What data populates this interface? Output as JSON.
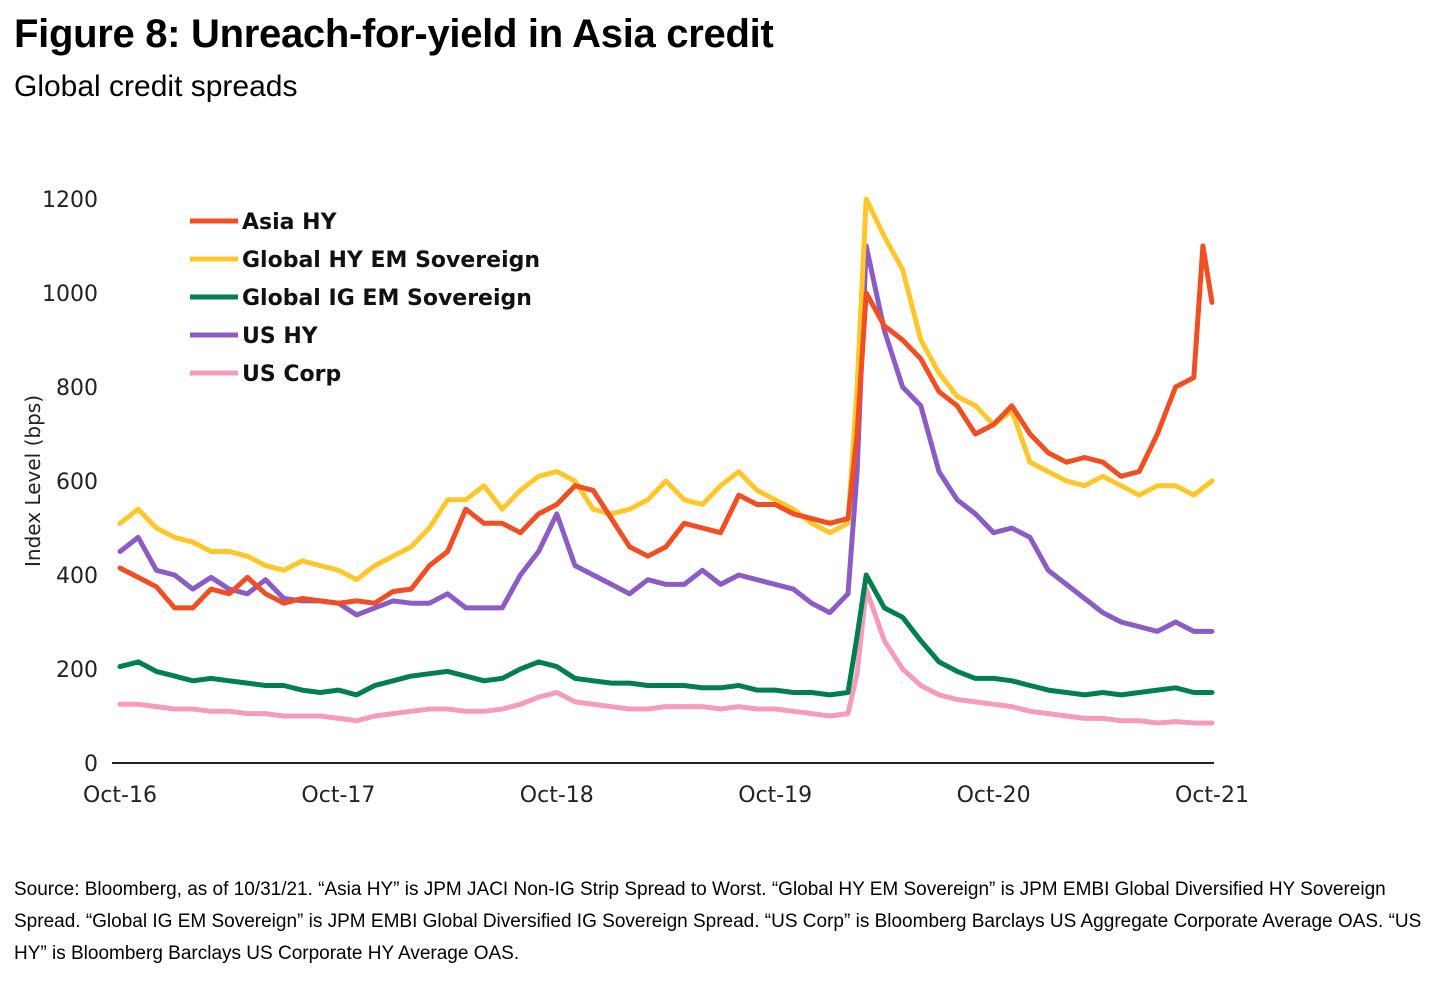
{
  "title": "Figure 8: Unreach-for-yield in Asia credit",
  "subtitle": "Global credit spreads",
  "source": [
    "Source: Bloomberg, as of 10/31/21. “Asia HY” is JPM JACI Non-IG Strip Spread to Worst. “Global HY EM Sovereign” is JPM EMBI Global Diversified HY Sovereign Spread. “Global IG EM Sovereign” is JPM EMBI Global Diversified IG Sovereign Spread. “US Corp” is Bloomberg Barclays US Aggregate Corporate Average OAS. “US HY” is Bloomberg Barclays US Corporate HY Average OAS."
  ],
  "chart_data": {
    "type": "line",
    "title": "Global credit spreads",
    "xlabel": "",
    "ylabel": "Index Level (bps)",
    "ylim": [
      0,
      1200
    ],
    "yticks": [
      0,
      200,
      400,
      600,
      800,
      1000,
      1200
    ],
    "xlim": [
      0,
      60
    ],
    "xticks": [
      {
        "x": 0,
        "label": "Oct-16"
      },
      {
        "x": 12,
        "label": "Oct-17"
      },
      {
        "x": 24,
        "label": "Oct-18"
      },
      {
        "x": 36,
        "label": "Oct-19"
      },
      {
        "x": 48,
        "label": "Oct-20"
      },
      {
        "x": 60,
        "label": "Oct-21"
      }
    ],
    "legend_position": "top-left",
    "series": [
      {
        "name": "Asia HY",
        "color": "#f04e23",
        "points": [
          [
            0,
            415
          ],
          [
            1,
            395
          ],
          [
            2,
            375
          ],
          [
            3,
            330
          ],
          [
            4,
            330
          ],
          [
            5,
            370
          ],
          [
            6,
            360
          ],
          [
            7,
            395
          ],
          [
            8,
            360
          ],
          [
            9,
            340
          ],
          [
            10,
            350
          ],
          [
            11,
            345
          ],
          [
            12,
            340
          ],
          [
            13,
            345
          ],
          [
            14,
            340
          ],
          [
            15,
            365
          ],
          [
            16,
            370
          ],
          [
            17,
            420
          ],
          [
            18,
            450
          ],
          [
            19,
            540
          ],
          [
            20,
            510
          ],
          [
            21,
            510
          ],
          [
            22,
            490
          ],
          [
            23,
            530
          ],
          [
            24,
            550
          ],
          [
            25,
            590
          ],
          [
            26,
            580
          ],
          [
            27,
            520
          ],
          [
            28,
            460
          ],
          [
            29,
            440
          ],
          [
            30,
            460
          ],
          [
            31,
            510
          ],
          [
            32,
            500
          ],
          [
            33,
            490
          ],
          [
            34,
            570
          ],
          [
            35,
            550
          ],
          [
            36,
            550
          ],
          [
            37,
            530
          ],
          [
            38,
            520
          ],
          [
            39,
            510
          ],
          [
            40,
            520
          ],
          [
            40.5,
            700
          ],
          [
            41,
            1000
          ],
          [
            42,
            930
          ],
          [
            43,
            900
          ],
          [
            44,
            860
          ],
          [
            45,
            790
          ],
          [
            46,
            760
          ],
          [
            47,
            700
          ],
          [
            48,
            720
          ],
          [
            49,
            760
          ],
          [
            50,
            700
          ],
          [
            51,
            660
          ],
          [
            52,
            640
          ],
          [
            53,
            650
          ],
          [
            54,
            640
          ],
          [
            55,
            610
          ],
          [
            56,
            620
          ],
          [
            57,
            700
          ],
          [
            58,
            800
          ],
          [
            59,
            820
          ],
          [
            59.5,
            1100
          ],
          [
            60,
            980
          ]
        ]
      },
      {
        "name": "Global HY EM Sovereign",
        "color": "#ffc72c",
        "points": [
          [
            0,
            510
          ],
          [
            1,
            540
          ],
          [
            2,
            500
          ],
          [
            3,
            480
          ],
          [
            4,
            470
          ],
          [
            5,
            450
          ],
          [
            6,
            450
          ],
          [
            7,
            440
          ],
          [
            8,
            420
          ],
          [
            9,
            410
          ],
          [
            10,
            430
          ],
          [
            11,
            420
          ],
          [
            12,
            410
          ],
          [
            13,
            390
          ],
          [
            14,
            420
          ],
          [
            15,
            440
          ],
          [
            16,
            460
          ],
          [
            17,
            500
          ],
          [
            18,
            560
          ],
          [
            19,
            560
          ],
          [
            20,
            590
          ],
          [
            21,
            540
          ],
          [
            22,
            580
          ],
          [
            23,
            610
          ],
          [
            24,
            620
          ],
          [
            25,
            600
          ],
          [
            26,
            540
          ],
          [
            27,
            530
          ],
          [
            28,
            540
          ],
          [
            29,
            560
          ],
          [
            30,
            600
          ],
          [
            31,
            560
          ],
          [
            32,
            550
          ],
          [
            33,
            590
          ],
          [
            34,
            620
          ],
          [
            35,
            580
          ],
          [
            36,
            560
          ],
          [
            37,
            540
          ],
          [
            38,
            510
          ],
          [
            39,
            490
          ],
          [
            40,
            510
          ],
          [
            40.5,
            800
          ],
          [
            41,
            1200
          ],
          [
            42,
            1120
          ],
          [
            43,
            1050
          ],
          [
            44,
            900
          ],
          [
            45,
            830
          ],
          [
            46,
            780
          ],
          [
            47,
            760
          ],
          [
            48,
            720
          ],
          [
            49,
            750
          ],
          [
            50,
            640
          ],
          [
            51,
            620
          ],
          [
            52,
            600
          ],
          [
            53,
            590
          ],
          [
            54,
            610
          ],
          [
            55,
            590
          ],
          [
            56,
            570
          ],
          [
            57,
            590
          ],
          [
            58,
            590
          ],
          [
            59,
            570
          ],
          [
            60,
            600
          ]
        ]
      },
      {
        "name": "Global IG EM Sovereign",
        "color": "#007f4e",
        "points": [
          [
            0,
            205
          ],
          [
            1,
            215
          ],
          [
            2,
            195
          ],
          [
            3,
            185
          ],
          [
            4,
            175
          ],
          [
            5,
            180
          ],
          [
            6,
            175
          ],
          [
            7,
            170
          ],
          [
            8,
            165
          ],
          [
            9,
            165
          ],
          [
            10,
            155
          ],
          [
            11,
            150
          ],
          [
            12,
            155
          ],
          [
            13,
            145
          ],
          [
            14,
            165
          ],
          [
            15,
            175
          ],
          [
            16,
            185
          ],
          [
            17,
            190
          ],
          [
            18,
            195
          ],
          [
            19,
            185
          ],
          [
            20,
            175
          ],
          [
            21,
            180
          ],
          [
            22,
            200
          ],
          [
            23,
            215
          ],
          [
            24,
            205
          ],
          [
            25,
            180
          ],
          [
            26,
            175
          ],
          [
            27,
            170
          ],
          [
            28,
            170
          ],
          [
            29,
            165
          ],
          [
            30,
            165
          ],
          [
            31,
            165
          ],
          [
            32,
            160
          ],
          [
            33,
            160
          ],
          [
            34,
            165
          ],
          [
            35,
            155
          ],
          [
            36,
            155
          ],
          [
            37,
            150
          ],
          [
            38,
            150
          ],
          [
            39,
            145
          ],
          [
            40,
            150
          ],
          [
            40.5,
            270
          ],
          [
            41,
            400
          ],
          [
            42,
            330
          ],
          [
            43,
            310
          ],
          [
            44,
            260
          ],
          [
            45,
            215
          ],
          [
            46,
            195
          ],
          [
            47,
            180
          ],
          [
            48,
            180
          ],
          [
            49,
            175
          ],
          [
            50,
            165
          ],
          [
            51,
            155
          ],
          [
            52,
            150
          ],
          [
            53,
            145
          ],
          [
            54,
            150
          ],
          [
            55,
            145
          ],
          [
            56,
            150
          ],
          [
            57,
            155
          ],
          [
            58,
            160
          ],
          [
            59,
            150
          ],
          [
            60,
            150
          ]
        ]
      },
      {
        "name": "US HY",
        "color": "#8a5cc4",
        "points": [
          [
            0,
            450
          ],
          [
            1,
            480
          ],
          [
            2,
            410
          ],
          [
            3,
            400
          ],
          [
            4,
            370
          ],
          [
            5,
            395
          ],
          [
            6,
            370
          ],
          [
            7,
            360
          ],
          [
            8,
            390
          ],
          [
            9,
            350
          ],
          [
            10,
            345
          ],
          [
            11,
            345
          ],
          [
            12,
            340
          ],
          [
            13,
            315
          ],
          [
            14,
            330
          ],
          [
            15,
            345
          ],
          [
            16,
            340
          ],
          [
            17,
            340
          ],
          [
            18,
            360
          ],
          [
            19,
            330
          ],
          [
            20,
            330
          ],
          [
            21,
            330
          ],
          [
            22,
            400
          ],
          [
            23,
            450
          ],
          [
            24,
            530
          ],
          [
            25,
            420
          ],
          [
            26,
            400
          ],
          [
            27,
            380
          ],
          [
            28,
            360
          ],
          [
            29,
            390
          ],
          [
            30,
            380
          ],
          [
            31,
            380
          ],
          [
            32,
            410
          ],
          [
            33,
            380
          ],
          [
            34,
            400
          ],
          [
            35,
            390
          ],
          [
            36,
            380
          ],
          [
            37,
            370
          ],
          [
            38,
            340
          ],
          [
            39,
            320
          ],
          [
            40,
            360
          ],
          [
            40.5,
            620
          ],
          [
            41,
            1100
          ],
          [
            42,
            920
          ],
          [
            43,
            800
          ],
          [
            44,
            760
          ],
          [
            45,
            620
          ],
          [
            46,
            560
          ],
          [
            47,
            530
          ],
          [
            48,
            490
          ],
          [
            49,
            500
          ],
          [
            50,
            480
          ],
          [
            51,
            410
          ],
          [
            52,
            380
          ],
          [
            53,
            350
          ],
          [
            54,
            320
          ],
          [
            55,
            300
          ],
          [
            56,
            290
          ],
          [
            57,
            280
          ],
          [
            58,
            300
          ],
          [
            59,
            280
          ],
          [
            60,
            280
          ]
        ]
      },
      {
        "name": "US Corp",
        "color": "#f59bbb",
        "points": [
          [
            0,
            125
          ],
          [
            1,
            125
          ],
          [
            2,
            120
          ],
          [
            3,
            115
          ],
          [
            4,
            115
          ],
          [
            5,
            110
          ],
          [
            6,
            110
          ],
          [
            7,
            105
          ],
          [
            8,
            105
          ],
          [
            9,
            100
          ],
          [
            10,
            100
          ],
          [
            11,
            100
          ],
          [
            12,
            95
          ],
          [
            13,
            90
          ],
          [
            14,
            100
          ],
          [
            15,
            105
          ],
          [
            16,
            110
          ],
          [
            17,
            115
          ],
          [
            18,
            115
          ],
          [
            19,
            110
          ],
          [
            20,
            110
          ],
          [
            21,
            115
          ],
          [
            22,
            125
          ],
          [
            23,
            140
          ],
          [
            24,
            150
          ],
          [
            25,
            130
          ],
          [
            26,
            125
          ],
          [
            27,
            120
          ],
          [
            28,
            115
          ],
          [
            29,
            115
          ],
          [
            30,
            120
          ],
          [
            31,
            120
          ],
          [
            32,
            120
          ],
          [
            33,
            115
          ],
          [
            34,
            120
          ],
          [
            35,
            115
          ],
          [
            36,
            115
          ],
          [
            37,
            110
          ],
          [
            38,
            105
          ],
          [
            39,
            100
          ],
          [
            40,
            105
          ],
          [
            40.5,
            190
          ],
          [
            41,
            370
          ],
          [
            42,
            260
          ],
          [
            43,
            200
          ],
          [
            44,
            165
          ],
          [
            45,
            145
          ],
          [
            46,
            135
          ],
          [
            47,
            130
          ],
          [
            48,
            125
          ],
          [
            49,
            120
          ],
          [
            50,
            110
          ],
          [
            51,
            105
          ],
          [
            52,
            100
          ],
          [
            53,
            95
          ],
          [
            54,
            95
          ],
          [
            55,
            90
          ],
          [
            56,
            90
          ],
          [
            57,
            85
          ],
          [
            58,
            88
          ],
          [
            59,
            85
          ],
          [
            60,
            85
          ]
        ]
      }
    ]
  }
}
